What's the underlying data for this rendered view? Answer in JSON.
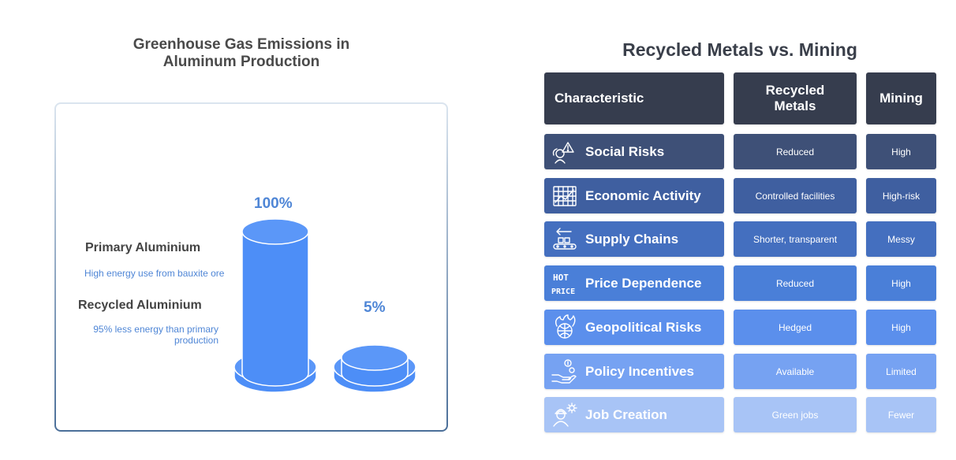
{
  "left": {
    "title_line1": "Greenhouse Gas Emissions in",
    "title_line2": "Aluminum Production",
    "primary": {
      "label": "Primary Aluminium",
      "description": "High energy use from bauxite ore",
      "percent_label": "100%",
      "value": 100
    },
    "recycled": {
      "label": "Recycled Aluminium",
      "description_line1": "95% less energy than primary",
      "description_line2": "production",
      "percent_label": "5%",
      "value": 5
    },
    "colors": {
      "cylinder": "#4d8ef7",
      "cylinder_top": "#5b97f8",
      "outline": "#ffffff"
    }
  },
  "right": {
    "title": "Recycled Metals vs. Mining",
    "headers": {
      "characteristic": "Characteristic",
      "recycled_line1": "Recycled",
      "recycled_line2": "Metals",
      "mining": "Mining"
    },
    "rows": [
      {
        "label": "Social Risks",
        "recycled": "Reduced",
        "mining": "High",
        "icon": "social-risk-icon",
        "color": "#3e5077"
      },
      {
        "label": "Economic Activity",
        "recycled": "Controlled facilities",
        "mining": "High-risk",
        "icon": "economic-chart-icon",
        "color": "#3f5fa0"
      },
      {
        "label": "Supply Chains",
        "recycled": "Shorter, transparent",
        "mining": "Messy",
        "icon": "supply-chain-icon",
        "color": "#446fbf"
      },
      {
        "label": "Price Dependence",
        "recycled": "Reduced",
        "mining": "High",
        "icon": "hot-price-icon",
        "color": "#4a7fd8"
      },
      {
        "label": "Geopolitical Risks",
        "recycled": "Hedged",
        "mining": "High",
        "icon": "globe-fire-icon",
        "color": "#5b8fec"
      },
      {
        "label": "Policy Incentives",
        "recycled": "Available",
        "mining": "Limited",
        "icon": "hand-coins-icon",
        "color": "#76a2f2"
      },
      {
        "label": "Job Creation",
        "recycled": "Green jobs",
        "mining": "Fewer",
        "icon": "worker-gear-icon",
        "color": "#a8c4f6"
      }
    ]
  }
}
